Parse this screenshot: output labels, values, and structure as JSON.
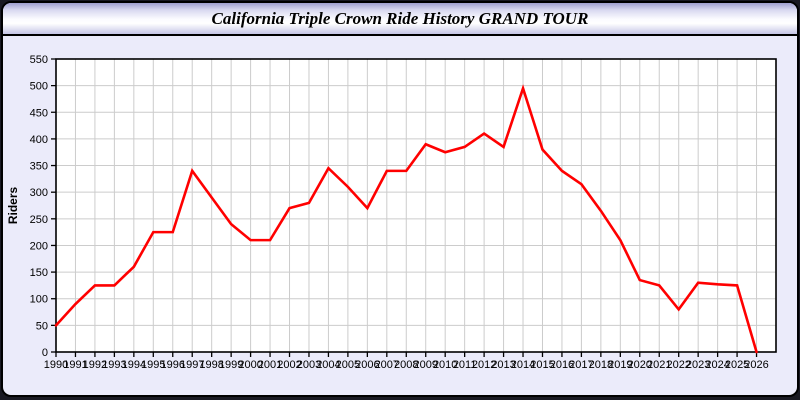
{
  "window": {
    "title": "California Triple Crown Ride History GRAND TOUR"
  },
  "colors": {
    "page_background": "#191922",
    "panel_background": "#ebebfa",
    "plot_background": "#ffffff",
    "gridline": "#cccccc",
    "axis": "#000000",
    "tick_text": "#000000",
    "series_line": "#ff0000"
  },
  "chart_data": {
    "type": "line",
    "title": "California Triple Crown Ride History GRAND TOUR",
    "xlabel": "",
    "ylabel": "Riders",
    "ylim": [
      0,
      550
    ],
    "ytick_step": 50,
    "grid": true,
    "legend_position": "none",
    "x": [
      1990,
      1991,
      1992,
      1993,
      1994,
      1995,
      1996,
      1997,
      1998,
      1999,
      2000,
      2001,
      2002,
      2003,
      2004,
      2005,
      2006,
      2007,
      2008,
      2009,
      2010,
      2011,
      2012,
      2013,
      2014,
      2015,
      2016,
      2017,
      2018,
      2019,
      2020,
      2021,
      2022,
      2023,
      2024,
      2025,
      2026
    ],
    "series": [
      {
        "name": "Riders",
        "color": "#ff0000",
        "values": [
          50,
          90,
          125,
          125,
          160,
          225,
          225,
          340,
          290,
          240,
          210,
          210,
          270,
          280,
          345,
          310,
          270,
          340,
          340,
          390,
          375,
          385,
          410,
          385,
          495,
          380,
          340,
          315,
          265,
          210,
          135,
          125,
          80,
          130,
          127,
          125,
          0
        ]
      }
    ]
  }
}
